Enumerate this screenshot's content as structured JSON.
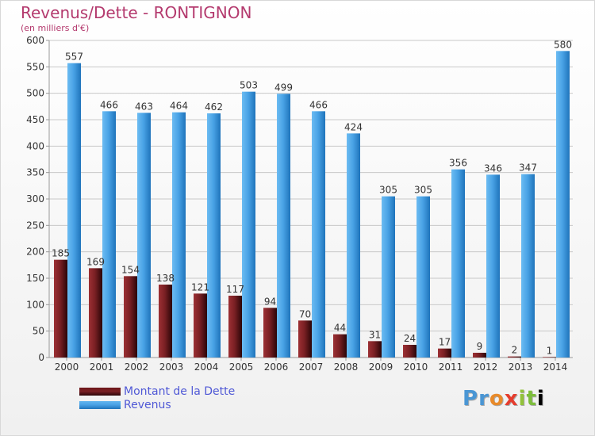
{
  "header": {
    "title": "Revenus/Dette - RONTIGNON",
    "subtitle": "(en milliers d'€)"
  },
  "legend": {
    "debt_label": "Montant de la Dette",
    "revenue_label": "Revenus"
  },
  "logo": {
    "text": "Proxiti"
  },
  "colors": {
    "debt": "#7a2024",
    "revenue": "#4aa3e6",
    "title": "#b43a6e",
    "legend_text": "#5059d6",
    "grid": "#c8c8c8"
  },
  "chart_data": {
    "type": "bar",
    "title": "Revenus/Dette - RONTIGNON",
    "ylabel": "(en milliers d'€)",
    "xlabel": "",
    "categories": [
      "2000",
      "2001",
      "2002",
      "2003",
      "2004",
      "2005",
      "2006",
      "2007",
      "2008",
      "2009",
      "2010",
      "2011",
      "2012",
      "2013",
      "2014"
    ],
    "series": [
      {
        "name": "Montant de la Dette",
        "values": [
          185,
          169,
          154,
          138,
          121,
          117,
          94,
          70,
          44,
          31,
          24,
          17,
          9,
          2,
          1
        ]
      },
      {
        "name": "Revenus",
        "values": [
          557,
          466,
          463,
          464,
          462,
          503,
          499,
          466,
          424,
          305,
          305,
          356,
          346,
          347,
          580
        ]
      }
    ],
    "ylim": [
      0,
      600
    ],
    "yticks": [
      0,
      50,
      100,
      150,
      200,
      250,
      300,
      350,
      400,
      450,
      500,
      550,
      600
    ],
    "grid": true,
    "legend_position": "bottom-left"
  }
}
